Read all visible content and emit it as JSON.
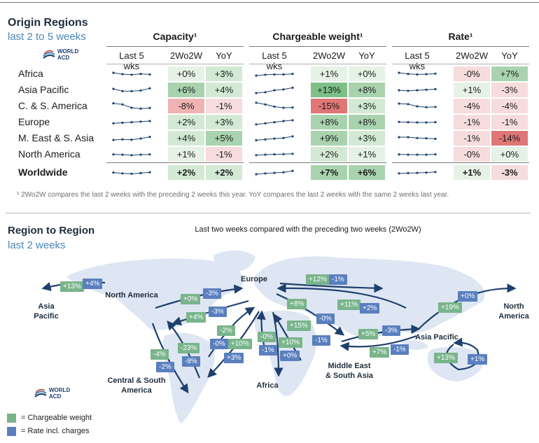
{
  "header": {
    "title": "Origin Regions",
    "subtitle": "last 2 to 5 weeks",
    "logo_text": [
      "WORLD",
      "ACD"
    ]
  },
  "groups": [
    {
      "title": "Capacity¹"
    },
    {
      "title": "Chargeable weight¹"
    },
    {
      "title": "Rate¹"
    }
  ],
  "col_headers": [
    "Last 5 wks",
    "2Wo2W",
    "YoY"
  ],
  "colors": {
    "green_strong": "#7fbf88",
    "green_medium": "#a9d3af",
    "green_light": "#d3e9d4",
    "green_faint": "#e6f2e6",
    "red_strong": "#e07676",
    "red_medium": "#f0b3b3",
    "red_light": "#f6dcdc",
    "neutral": "#eeeeee",
    "chargeable_weight": "#79b48b",
    "rate": "#5a7fbf",
    "map_land": "#dde6f2",
    "arrow": "#1f3f6e"
  },
  "chart_data": {
    "type": "table",
    "rows": [
      {
        "label": "Africa",
        "bold": false,
        "capacity": {
          "trend": [
            3,
            2.5,
            2.3,
            2.6,
            2.4
          ],
          "w2": "+0%",
          "yoy": "+3%"
        },
        "chargeable": {
          "trend": [
            2,
            2.3,
            2.4,
            2.4,
            2.6
          ],
          "w2": "+1%",
          "yoy": "+0%"
        },
        "rate": {
          "trend": [
            3,
            2.6,
            2.4,
            2.5,
            2.7
          ],
          "w2": "-0%",
          "yoy": "+7%"
        }
      },
      {
        "label": "Asia Pacific",
        "bold": false,
        "capacity": {
          "trend": [
            3,
            2.2,
            2.2,
            2.4,
            3.2
          ],
          "w2": "+6%",
          "yoy": "+4%"
        },
        "chargeable": {
          "trend": [
            1.5,
            1.8,
            2.5,
            2.8,
            3.4
          ],
          "w2": "+13%",
          "yoy": "+8%"
        },
        "rate": {
          "trend": [
            2.5,
            2.3,
            2.5,
            2.7,
            2.9
          ],
          "w2": "+1%",
          "yoy": "-3%"
        }
      },
      {
        "label": "C. & S. America",
        "bold": false,
        "capacity": {
          "trend": [
            3.6,
            3.2,
            2,
            1.7,
            1.9
          ],
          "w2": "-8%",
          "yoy": "-1%"
        },
        "chargeable": {
          "trend": [
            3.8,
            3.2,
            2.4,
            2,
            2.1
          ],
          "w2": "-15%",
          "yoy": "+3%"
        },
        "rate": {
          "trend": [
            3.5,
            3.3,
            2.5,
            2.2,
            2.3
          ],
          "w2": "-4%",
          "yoy": "-4%"
        }
      },
      {
        "label": "Europe",
        "bold": false,
        "capacity": {
          "trend": [
            2.2,
            2.4,
            2.6,
            2.8,
            3
          ],
          "w2": "+2%",
          "yoy": "+3%"
        },
        "chargeable": {
          "trend": [
            1.8,
            2.2,
            2.6,
            3,
            3.3
          ],
          "w2": "+8%",
          "yoy": "+8%"
        },
        "rate": {
          "trend": [
            2.7,
            2.6,
            2.5,
            2.5,
            2.6
          ],
          "w2": "-1%",
          "yoy": "-1%"
        }
      },
      {
        "label": "M. East & S. Asia",
        "bold": false,
        "capacity": {
          "trend": [
            2,
            2.2,
            2.1,
            2.5,
            3.1
          ],
          "w2": "+4%",
          "yoy": "+5%"
        },
        "chargeable": {
          "trend": [
            1.9,
            2.2,
            2.5,
            2.7,
            3.3
          ],
          "w2": "+9%",
          "yoy": "+3%"
        },
        "rate": {
          "trend": [
            3,
            3,
            2.7,
            2.6,
            2.4
          ],
          "w2": "-1%",
          "yoy": "-14%"
        }
      },
      {
        "label": "North America",
        "bold": false,
        "capacity": {
          "trend": [
            2.6,
            2.5,
            2.3,
            2.5,
            2.6
          ],
          "w2": "+1%",
          "yoy": "-1%"
        },
        "chargeable": {
          "trend": [
            2.3,
            2.5,
            2.6,
            2.7,
            2.8
          ],
          "w2": "+2%",
          "yoy": "+1%"
        },
        "rate": {
          "trend": [
            2.6,
            2.5,
            2.5,
            2.5,
            2.6
          ],
          "w2": "-0%",
          "yoy": "+0%"
        }
      },
      {
        "label": "Worldwide",
        "bold": true,
        "capacity": {
          "trend": [
            2.6,
            2.3,
            2.2,
            2.4,
            2.7
          ],
          "w2": "+2%",
          "yoy": "+2%"
        },
        "chargeable": {
          "trend": [
            2,
            2.3,
            2.5,
            2.7,
            3.2
          ],
          "w2": "+7%",
          "yoy": "+6%"
        },
        "rate": {
          "trend": [
            2.3,
            2.4,
            2.5,
            2.6,
            2.8
          ],
          "w2": "+1%",
          "yoy": "-3%"
        }
      }
    ]
  },
  "footnote": "¹ 2Wo2W compares the last 2 weeks with the preceding 2 weeks this year. YoY compares the last 2 weeks with the same 2 weeks last year.",
  "section2": {
    "title": "Region to Region",
    "subtitle": "last 2 weeks",
    "center_title": "Last two weeks compared with the preceding two weeks (2Wo2W)"
  },
  "map_labels": {
    "asia_pacific_left": "Asia\nPacific",
    "north_america": "North America",
    "europe": "Europe",
    "north_america_right": "North\nAmerica",
    "asia_pacific": "Asia Pacific",
    "central_south_america": "Central & South\nAmerica",
    "africa": "Africa",
    "middle_east": "Middle East\n& South Asia"
  },
  "badges": {
    "apac_na_g": "+13%",
    "apac_na_b": "+4%",
    "na_eu_g": "+0%",
    "na_eu_b": "-3%",
    "eu_na_g": "+4%",
    "eu_na_b": "-3%",
    "eu_as_g": "+12%",
    "eu_as_b": "-1%",
    "eu_me_g": "+8%",
    "eu_me_b": "-0%",
    "as_eu_g": "+11%",
    "as_eu_b": "+2%",
    "na_as_g": "+19%",
    "na_as_b": "+0%",
    "na_sa_g": "-4%",
    "na_sa_b": "-2%",
    "sa_na_g": "-23%",
    "sa_na_b": "-8%",
    "sa_eu_g": "-2%",
    "sa_eu_b": "-0%",
    "eu_sa_g": "+10%",
    "eu_sa_b": "+3%",
    "af_eu_g": "-0%",
    "af_eu_b": "-1%",
    "eu_af_g": "+10%",
    "eu_af_b": "+0%",
    "me_eu_g": "+15%",
    "me_eu_b": "-1%",
    "me_as_g": "+5%",
    "me_as_b": "-3%",
    "as_me_g": "+7%",
    "as_me_b": "-1%",
    "intra_as_g": "+13%",
    "intra_as_b": "+1%"
  },
  "legend": {
    "chargeable": "= Chargeable weight",
    "rate": "= Rate incl. charges"
  }
}
